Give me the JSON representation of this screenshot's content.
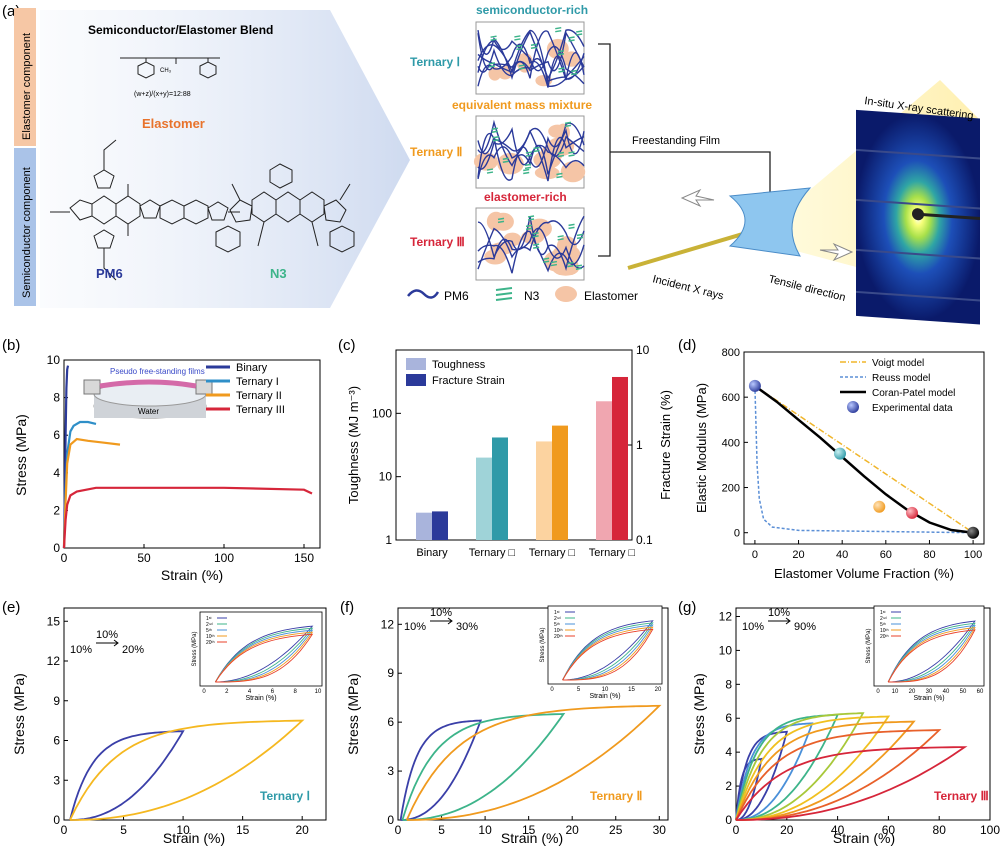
{
  "panels": {
    "a": {
      "label": "(a)",
      "blend_title": "Semiconductor/Elastomer Blend",
      "side_elastomer": "Elastomer component",
      "side_semiconductor": "Semiconductor component",
      "ratio_text": "(w+z)/(x+y)=12:88",
      "elastomer_label": "Elastomer",
      "pm6_label": "PM6",
      "n3_label": "N3",
      "headers": [
        "semiconductor-rich",
        "equivalent mass mixture",
        "elastomer-rich"
      ],
      "ternary_labels": [
        "Ternary Ⅰ",
        "Ternary Ⅱ",
        "Ternary Ⅲ"
      ],
      "freestanding": "Freestanding Film",
      "insitu": "In-situ X-ray scattering",
      "incident": "Incident X rays",
      "tensile": "Tensile direction",
      "legend": [
        "PM6",
        "N3",
        "Elastomer"
      ],
      "colors": {
        "pm6": "#2b3a9a",
        "n3": "#3db48a",
        "elastomer": "#f5c5a6",
        "ternary1": "#2f9aa8",
        "ternary2": "#f09a1e",
        "ternary3": "#d6263a"
      }
    },
    "b": {
      "label": "(b)",
      "ylabel": "Stress (MPa)",
      "xlabel": "Strain (%)",
      "inset_title": "Pseudo free-standing films",
      "inset_water": "Water",
      "yticks": [
        "0",
        "2",
        "4",
        "6",
        "8",
        "10"
      ],
      "xticks": [
        "0",
        "50",
        "100",
        "150"
      ],
      "legend": [
        "Binary",
        "Ternary I",
        "Ternary II",
        "Ternary III"
      ]
    },
    "c": {
      "label": "(c)",
      "ylabel": "Toughness (MJ m⁻³)",
      "y2label": "Fracture Strain (%)",
      "legend": [
        "Toughness",
        "Fracture Strain"
      ],
      "categories": [
        "Binary",
        "Ternary □",
        "Ternary □",
        "Ternary □"
      ],
      "yticks": [
        "1",
        "10",
        "100"
      ],
      "y2ticks": [
        "0.1",
        "1",
        "10"
      ]
    },
    "d": {
      "label": "(d)",
      "ylabel": "Elastic Modulus (MPa)",
      "xlabel": "Elastomer Volume Fraction (%)",
      "legend": [
        "Voigt model",
        "Reuss model",
        "Coran-Patel model",
        "Experimental data"
      ],
      "yticks": [
        "0",
        "200",
        "400",
        "600",
        "800"
      ],
      "xticks": [
        "0",
        "20",
        "40",
        "60",
        "80",
        "100"
      ]
    },
    "e": {
      "label": "(e)",
      "ylabel": "Stress (MPa)",
      "xlabel": "Strain (%)",
      "protocol_a": "10%",
      "protocol_b": "10%",
      "protocol_c": "20%",
      "tag": "Ternary Ⅰ",
      "yticks": [
        "0",
        "3",
        "6",
        "9",
        "12",
        "15"
      ],
      "xticks": [
        "0",
        "5",
        "10",
        "15",
        "20"
      ],
      "inset_legend": [
        "1ˢᵗ",
        "2ⁿᵈ",
        "5ᵗʰ",
        "10ᵗʰ",
        "20ᵗʰ"
      ],
      "inset_xlabel": "Strain (%)",
      "inset_ylabel": "Stress (MPa)"
    },
    "f": {
      "label": "(f)",
      "ylabel": "Stress (MPa)",
      "xlabel": "Strain (%)",
      "protocol_a": "10%",
      "protocol_b": "10%",
      "protocol_c": "30%",
      "tag": "Ternary Ⅱ",
      "yticks": [
        "0",
        "3",
        "6",
        "9",
        "12"
      ],
      "xticks": [
        "0",
        "5",
        "10",
        "15",
        "20",
        "25",
        "30"
      ],
      "inset_legend": [
        "1ˢᵗ",
        "2ⁿᵈ",
        "5ᵗʰ",
        "10ᵗʰ",
        "20ᵗʰ"
      ],
      "inset_xlabel": "Strain (%)",
      "inset_ylabel": "Stress (MPa)"
    },
    "g": {
      "label": "(g)",
      "ylabel": "Stress (MPa)",
      "xlabel": "Strain (%)",
      "protocol_a": "10%",
      "protocol_b": "10%",
      "protocol_c": "90%",
      "tag": "Ternary Ⅲ",
      "yticks": [
        "0",
        "2",
        "4",
        "6",
        "8",
        "10",
        "12"
      ],
      "xticks": [
        "0",
        "20",
        "40",
        "60",
        "80",
        "100"
      ],
      "inset_legend": [
        "1ˢᵗ",
        "2ⁿᵈ",
        "5ᵗʰ",
        "10ᵗʰ",
        "20ᵗʰ"
      ],
      "inset_xlabel": "Strain (%)",
      "inset_ylabel": "Stress (MPa)"
    }
  },
  "chart_data": [
    {
      "panel": "b",
      "type": "line",
      "xlabel": "Strain (%)",
      "ylabel": "Stress (MPa)",
      "xlim": [
        0,
        160
      ],
      "ylim": [
        0,
        10
      ],
      "series": [
        {
          "name": "Binary",
          "color": "#2b3a9a",
          "x": [
            0,
            0.5,
            1,
            1.5,
            2,
            2.5
          ],
          "y": [
            0,
            3,
            6,
            8.5,
            9.5,
            9.7
          ]
        },
        {
          "name": "Ternary I",
          "color": "#2f8fc8",
          "x": [
            0,
            1,
            2,
            4,
            6,
            10,
            15,
            20
          ],
          "y": [
            0,
            3,
            5,
            6.2,
            6.5,
            6.7,
            6.7,
            6.6
          ]
        },
        {
          "name": "Ternary II",
          "color": "#f09a1e",
          "x": [
            0,
            1,
            2,
            4,
            8,
            15,
            25,
            35
          ],
          "y": [
            0,
            2.5,
            4.5,
            5.5,
            5.8,
            5.7,
            5.6,
            5.5
          ]
        },
        {
          "name": "Ternary III",
          "color": "#d6263a",
          "x": [
            0,
            1,
            2,
            4,
            8,
            20,
            50,
            100,
            150,
            155
          ],
          "y": [
            0,
            1.5,
            2.3,
            2.8,
            3.0,
            3.2,
            3.2,
            3.2,
            3.1,
            2.9
          ]
        }
      ]
    },
    {
      "panel": "c",
      "type": "bar",
      "categories": [
        "Binary",
        "Ternary □",
        "Ternary □",
        "Ternary □"
      ],
      "ylabel": "Toughness (MJ m⁻³)",
      "y2label": "Fracture Strain (%)",
      "yscale": "log",
      "ylim": [
        1,
        1000
      ],
      "y2lim": [
        0.1,
        10
      ],
      "series": [
        {
          "name": "Toughness",
          "values": [
            2.7,
            20,
            36,
            155
          ]
        },
        {
          "name": "Fracture Strain",
          "values": [
            0.2,
            1.2,
            1.6,
            5.2
          ]
        }
      ]
    },
    {
      "panel": "d",
      "type": "scatter",
      "xlabel": "Elastomer Volume Fraction (%)",
      "ylabel": "Elastic Modulus (MPa)",
      "xlim": [
        -5,
        105
      ],
      "ylim": [
        -50,
        800
      ],
      "series": [
        {
          "name": "Voigt model",
          "x": [
            0,
            100
          ],
          "y": [
            650,
            0
          ]
        },
        {
          "name": "Reuss model",
          "x": [
            0,
            1,
            2,
            4,
            8,
            20,
            100
          ],
          "y": [
            650,
            300,
            150,
            60,
            25,
            10,
            0
          ]
        },
        {
          "name": "Coran-Patel model",
          "x": [
            0,
            10,
            20,
            30,
            40,
            50,
            60,
            70,
            80,
            90,
            100
          ],
          "y": [
            650,
            580,
            500,
            420,
            335,
            250,
            170,
            100,
            45,
            12,
            0
          ]
        },
        {
          "name": "Experimental data",
          "x": [
            0,
            39,
            57,
            72,
            100
          ],
          "y": [
            650,
            350,
            115,
            88,
            0
          ]
        }
      ]
    },
    {
      "panel": "e",
      "type": "line",
      "xlabel": "Strain (%)",
      "ylabel": "Stress (MPa)",
      "xlim": [
        0,
        22
      ],
      "ylim": [
        0,
        16
      ]
    },
    {
      "panel": "f",
      "type": "line",
      "xlabel": "Strain (%)",
      "ylabel": "Stress (MPa)",
      "xlim": [
        0,
        31
      ],
      "ylim": [
        0,
        13
      ]
    },
    {
      "panel": "g",
      "type": "line",
      "xlabel": "Strain (%)",
      "ylabel": "Stress (MPa)",
      "xlim": [
        0,
        100
      ],
      "ylim": [
        0,
        12.5
      ]
    }
  ]
}
